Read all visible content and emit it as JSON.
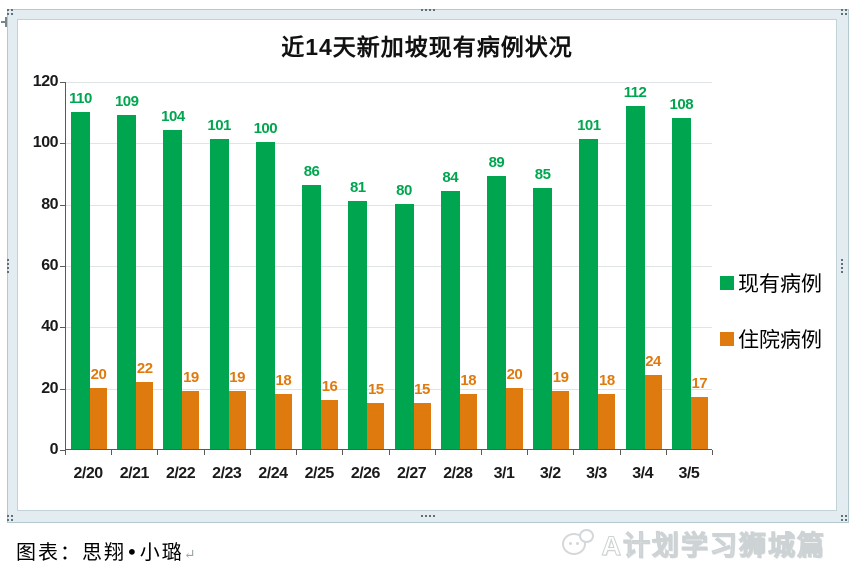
{
  "page": {
    "caption": "图表：思翔•小璐",
    "paragraph_mark": "↵",
    "watermark_text": "A计划学习狮城篇"
  },
  "chart_data": {
    "type": "bar",
    "title": "近14天新加坡现有病例状况",
    "categories": [
      "2/20",
      "2/21",
      "2/22",
      "2/23",
      "2/24",
      "2/25",
      "2/26",
      "2/27",
      "2/28",
      "3/1",
      "3/2",
      "3/3",
      "3/4",
      "3/5"
    ],
    "series": [
      {
        "name": "现有病例",
        "color": "#00A64F",
        "values": [
          110,
          109,
          104,
          101,
          100,
          86,
          81,
          80,
          84,
          89,
          85,
          101,
          112,
          108
        ]
      },
      {
        "name": "住院病例",
        "color": "#DF7A0E",
        "values": [
          20,
          22,
          19,
          19,
          18,
          16,
          15,
          15,
          18,
          20,
          19,
          18,
          24,
          17
        ]
      }
    ],
    "xlabel": "",
    "ylabel": "",
    "ylim": [
      0,
      120
    ],
    "ytick_step": 20,
    "grid": true,
    "legend_position": "right"
  },
  "colors": {
    "bar_green": "#00A64F",
    "bar_orange": "#DF7A0E",
    "gridline": "#dfe5e7",
    "axis": "#5a5a5a",
    "frame_band": "#e3edf1",
    "frame_line": "#b4c9cf",
    "watermark": "#cdd2d4"
  }
}
